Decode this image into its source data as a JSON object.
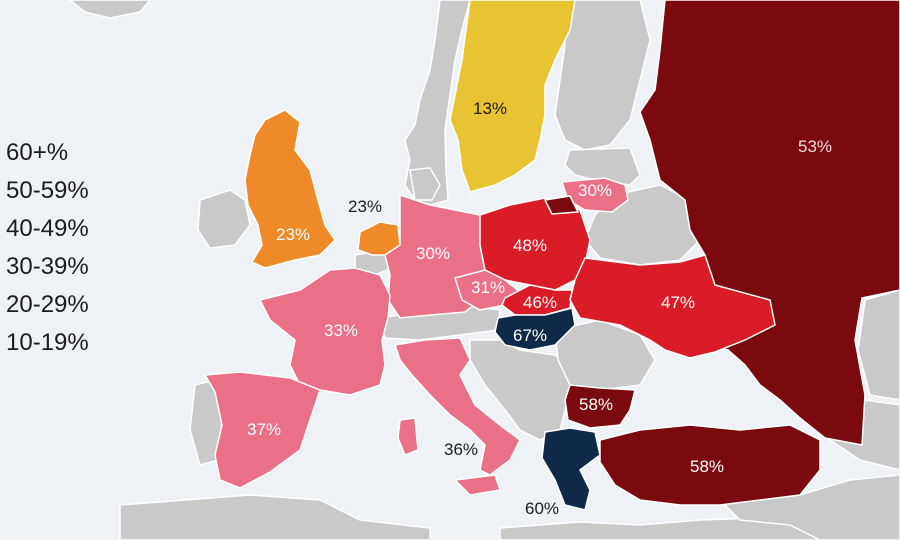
{
  "legend": {
    "items": [
      {
        "label": "60+%",
        "color": "#0f2a48"
      },
      {
        "label": "50-59%",
        "color": "#7b0a0e"
      },
      {
        "label": "40-49%",
        "color": "#d91c27"
      },
      {
        "label": "30-39%",
        "color": "#ea7088"
      },
      {
        "label": "20-29%",
        "color": "#ee8a28"
      },
      {
        "label": "10-19%",
        "color": "#e8c432"
      }
    ]
  },
  "colors": {
    "sea": "#eef2f6",
    "land_nodata": "#c9c9c9",
    "border": "#ffffff"
  },
  "countries": {
    "sweden": {
      "value": "13%",
      "color": "#e8c432"
    },
    "uk": {
      "value": "23%",
      "color": "#ee8a28"
    },
    "netherlands": {
      "value": "23%",
      "color": "#ee8a28"
    },
    "germany": {
      "value": "30%",
      "color": "#ea7088"
    },
    "lithuania": {
      "value": "30%",
      "color": "#ea7088"
    },
    "czechia": {
      "value": "31%",
      "color": "#ea7088"
    },
    "france": {
      "value": "33%",
      "color": "#ea7088"
    },
    "spain": {
      "value": "37%",
      "color": "#ea7088"
    },
    "italy": {
      "value": "36%",
      "color": "#ea7088"
    },
    "poland": {
      "value": "48%",
      "color": "#d91c27"
    },
    "slovakia": {
      "value": "46%",
      "color": "#d91c27"
    },
    "ukraine": {
      "value": "47%",
      "color": "#d91c27"
    },
    "hungary": {
      "value": "67%",
      "color": "#0f2a48"
    },
    "greece": {
      "value": "60%",
      "color": "#0f2a48"
    },
    "bulgaria": {
      "value": "58%",
      "color": "#7b0a0e"
    },
    "turkey": {
      "value": "58%",
      "color": "#7b0a0e"
    },
    "russia": {
      "value": "53%",
      "color": "#7b0a0e"
    }
  }
}
